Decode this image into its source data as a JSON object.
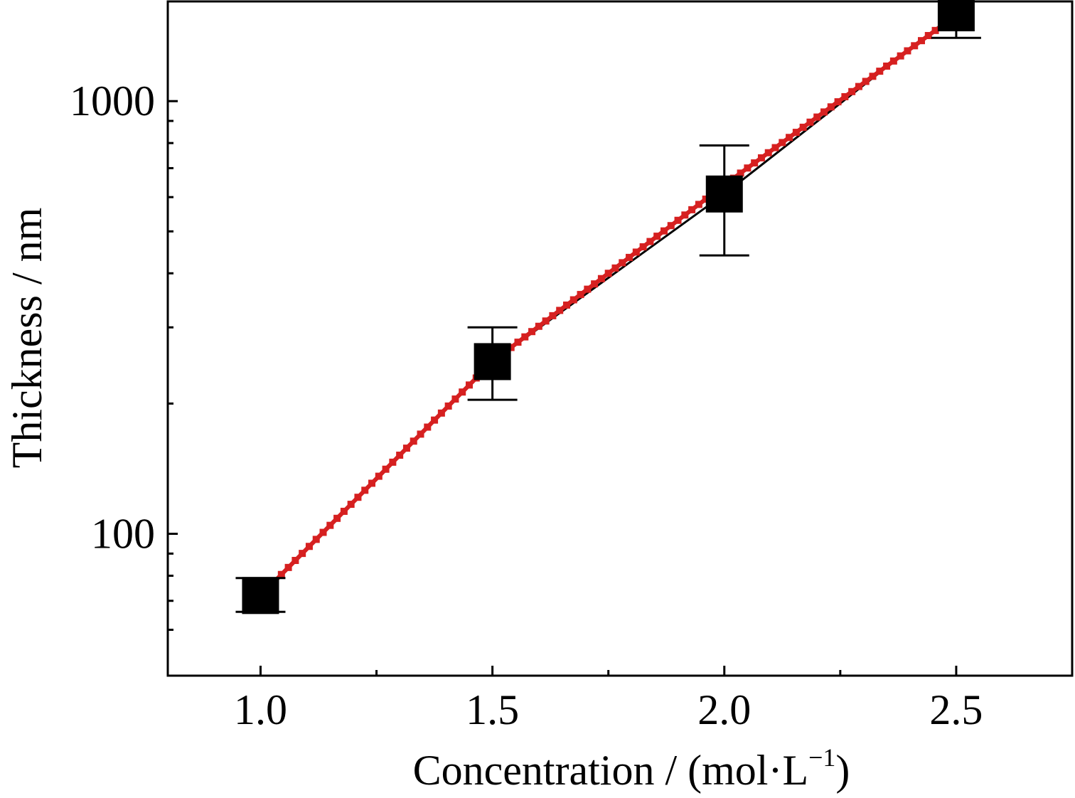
{
  "chart_data": {
    "type": "scatter",
    "xlabel": "Concentration / (mol·L",
    "xlabel_superscript": "−1",
    "xlabel_suffix": ")",
    "ylabel": "Thickness / nm",
    "xlim": [
      0.8,
      2.75
    ],
    "ylim": [
      47,
      1700
    ],
    "y_scale": "log",
    "x_ticks": [
      "1.0",
      "1.5",
      "2.0",
      "2.5"
    ],
    "x_tick_values": [
      1.0,
      1.5,
      2.0,
      2.5
    ],
    "x_minor_ticks": [
      1.25,
      1.75,
      2.25
    ],
    "y_ticks": [
      "100",
      "1000"
    ],
    "y_tick_values": [
      100,
      1000
    ],
    "y_minor_ticks": [
      60,
      70,
      80,
      90,
      200,
      300,
      400,
      500,
      600,
      700,
      800,
      900
    ],
    "grid": false,
    "series": [
      {
        "marker": "square",
        "color": "#000000",
        "x": [
          1.0,
          1.5,
          2.0,
          2.5
        ],
        "y": [
          72,
          250,
          610,
          1600
        ],
        "y_err_low": [
          66,
          204,
          440,
          1400
        ],
        "y_err_high": [
          79,
          300,
          790,
          1780
        ]
      }
    ],
    "fit_line": {
      "color": "#d62020",
      "x": [
        1.0,
        1.5,
        2.0,
        2.5
      ],
      "y": [
        72,
        250,
        640,
        1580
      ]
    }
  }
}
